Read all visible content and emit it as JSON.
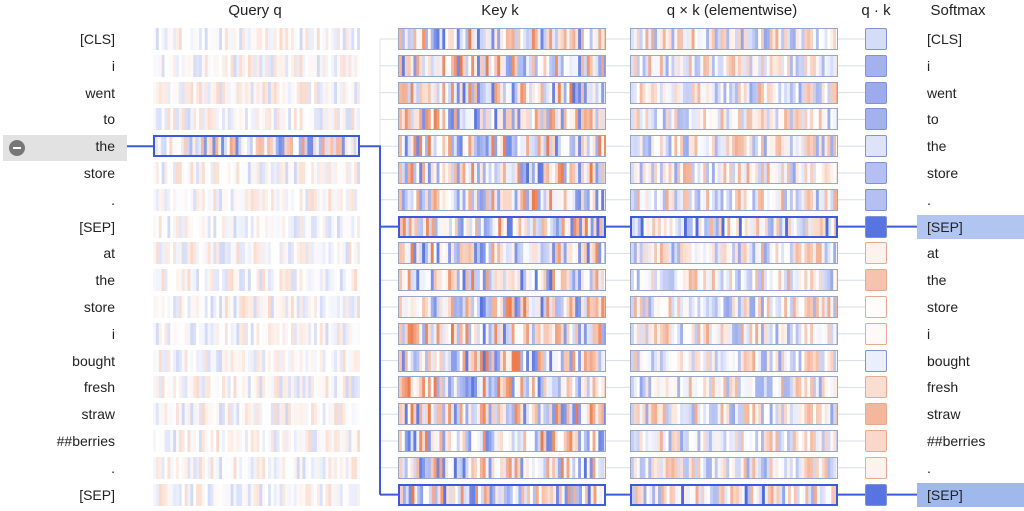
{
  "headers": {
    "query": "Query q",
    "key": "Key k",
    "product": "q × k (elementwise)",
    "dot": "q · k",
    "softmax": "Softmax"
  },
  "selected_index": 4,
  "attended_indices": [
    7,
    17
  ],
  "tokens": [
    "[CLS]",
    "i",
    "went",
    "to",
    "the",
    "store",
    ".",
    "[SEP]",
    "at",
    "the",
    "store",
    "i",
    "bought",
    "fresh",
    "straw",
    "##berries",
    ".",
    "[SEP]"
  ],
  "dot_scores": [
    0.25,
    0.55,
    0.6,
    0.55,
    0.2,
    0.45,
    0.45,
    1.0,
    -0.1,
    -0.45,
    -0.02,
    -0.05,
    0.12,
    -0.25,
    -0.55,
    -0.3,
    -0.1,
    1.0
  ],
  "softmax_weights": [
    0.0,
    0.0,
    0.0,
    0.0,
    0.0,
    0.0,
    0.0,
    0.55,
    0.0,
    0.0,
    0.0,
    0.0,
    0.0,
    0.0,
    0.0,
    0.0,
    0.0,
    0.75
  ],
  "colors": {
    "positive": "#3b5bdb",
    "negative": "#e8632b",
    "selection": "#3b5bdb",
    "softmax_highlight": "#b3c8f2"
  }
}
